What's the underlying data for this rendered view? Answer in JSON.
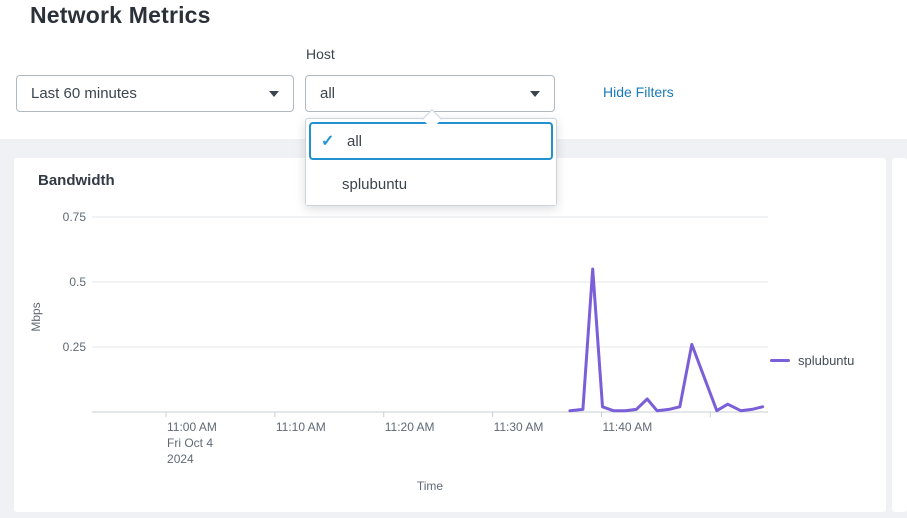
{
  "page": {
    "title": "Network Metrics"
  },
  "filters": {
    "time_range": {
      "value": "Last 60 minutes"
    },
    "host": {
      "label": "Host",
      "value": "all",
      "options": [
        {
          "label": "all",
          "selected": true
        },
        {
          "label": "splubuntu",
          "selected": false
        }
      ]
    },
    "hide_filters_label": "Hide Filters"
  },
  "colors": {
    "series_purple": "#7b5fd9",
    "link_blue": "#1a7bb8",
    "focus_blue": "#2191d0",
    "panel_bg": "#ffffff",
    "page_band_bg": "#eff1f4",
    "grid_line": "#e4e7ea",
    "axis_line": "#c9cfd5",
    "axis_text": "#5f6a75"
  },
  "chart_data": {
    "type": "line",
    "title": "Bandwidth",
    "xlabel": "Time",
    "ylabel": "Mbps",
    "x_axis": {
      "unit": "minutes after 11:00 AM",
      "domain_minutes": [
        -6.8,
        55.3
      ],
      "tick_minutes": [
        0,
        10,
        20,
        30,
        40,
        50
      ],
      "tick_labels": [
        "11:00 AM",
        "11:10 AM",
        "11:20 AM",
        "11:30 AM",
        "11:40 AM",
        ""
      ],
      "first_tick_sublabels": [
        "Fri Oct 4",
        "2024"
      ]
    },
    "y_axis": {
      "range": [
        0,
        0.8
      ],
      "grid_ticks": [
        0.25,
        0.5,
        0.75
      ],
      "grid_tick_labels": [
        "0.25",
        "0.5",
        "0.75"
      ]
    },
    "legend": {
      "position": "right",
      "entries": [
        "splubuntu"
      ]
    },
    "series": [
      {
        "name": "splubuntu",
        "color": "#7b5fd9",
        "points": [
          [
            37.1,
            0.005
          ],
          [
            38.3,
            0.01
          ],
          [
            39.2,
            0.55
          ],
          [
            40.1,
            0.02
          ],
          [
            41.1,
            0.005
          ],
          [
            42.2,
            0.005
          ],
          [
            43.2,
            0.01
          ],
          [
            44.2,
            0.05
          ],
          [
            45.1,
            0.005
          ],
          [
            46.2,
            0.01
          ],
          [
            47.2,
            0.02
          ],
          [
            48.3,
            0.26
          ],
          [
            50.6,
            0.005
          ],
          [
            51.6,
            0.03
          ],
          [
            52.8,
            0.005
          ],
          [
            53.8,
            0.01
          ],
          [
            54.8,
            0.02
          ]
        ]
      }
    ]
  }
}
